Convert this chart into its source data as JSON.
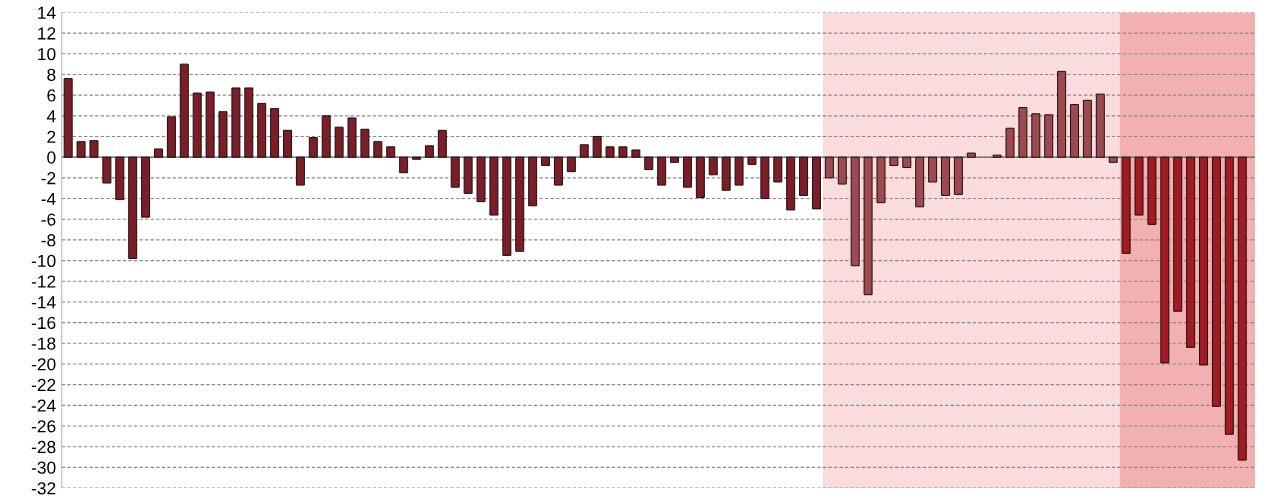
{
  "chart_data": {
    "type": "bar",
    "categories": [
      null,
      null,
      null,
      null,
      null,
      null,
      null,
      null,
      null,
      null,
      null,
      null,
      null,
      null,
      null,
      null,
      null,
      null,
      null,
      null,
      null,
      null,
      null,
      null,
      null,
      null,
      null,
      null,
      null,
      null,
      null,
      null,
      null,
      null,
      null,
      null,
      null,
      null,
      null,
      null,
      null,
      null,
      null,
      null,
      null,
      null,
      null,
      null,
      null,
      null,
      null,
      null,
      null,
      null,
      null,
      null,
      null,
      null,
      null,
      null,
      null,
      null,
      null,
      null,
      null,
      null,
      null,
      null,
      null,
      null,
      null,
      null,
      null,
      null,
      null,
      null,
      null,
      null,
      null,
      null,
      null,
      null,
      null,
      null,
      null,
      null,
      null,
      null,
      null,
      null,
      null,
      null
    ],
    "values": [
      7.6,
      1.5,
      1.6,
      -2.5,
      -4.1,
      -9.8,
      -5.8,
      0.8,
      3.9,
      9.0,
      6.2,
      6.3,
      4.4,
      6.7,
      6.7,
      5.2,
      4.7,
      2.6,
      -2.7,
      1.9,
      4.0,
      2.9,
      3.8,
      2.7,
      1.5,
      1.0,
      -1.5,
      -0.2,
      1.1,
      2.6,
      -2.9,
      -3.5,
      -4.3,
      -5.6,
      -9.5,
      -9.1,
      -4.7,
      -0.8,
      -2.7,
      -1.4,
      1.2,
      2.0,
      1.0,
      1.0,
      0.7,
      -1.2,
      -2.7,
      -0.5,
      -2.9,
      -3.9,
      -1.7,
      -3.2,
      -2.7,
      -0.7,
      -4.0,
      -2.4,
      -5.1,
      -3.7,
      -5.0,
      -2.0,
      -2.6,
      -10.5,
      -13.3,
      -4.4,
      -0.8,
      -1.0,
      -4.8,
      -2.4,
      -3.7,
      -3.6,
      0.4,
      null,
      0.2,
      2.8,
      4.8,
      4.2,
      4.1,
      8.3,
      5.1,
      5.5,
      6.1,
      -0.5,
      -9.3,
      -5.6,
      -6.5,
      -19.9,
      -14.9,
      -18.4,
      -20.1,
      -24.1,
      -26.8,
      -29.3
    ],
    "colors": [
      "#7a1f2a",
      "#7a1f2a",
      "#7a1f2a",
      "#7a1f2a",
      "#7a1f2a",
      "#7a1f2a",
      "#7a1f2a",
      "#7a1f2a",
      "#7a1f2a",
      "#7a1f2a",
      "#7a1f2a",
      "#7a1f2a",
      "#7a1f2a",
      "#7a1f2a",
      "#7a1f2a",
      "#7a1f2a",
      "#7a1f2a",
      "#7a1f2a",
      "#7a1f2a",
      "#7a1f2a",
      "#7a1f2a",
      "#7a1f2a",
      "#7a1f2a",
      "#7a1f2a",
      "#7a1f2a",
      "#7a1f2a",
      "#7a1f2a",
      "#7a1f2a",
      "#7a1f2a",
      "#7a1f2a",
      "#7a1f2a",
      "#7a1f2a",
      "#7a1f2a",
      "#7a1f2a",
      "#7a1f2a",
      "#7a1f2a",
      "#7a1f2a",
      "#7a1f2a",
      "#7a1f2a",
      "#7a1f2a",
      "#7a1f2a",
      "#7a1f2a",
      "#7a1f2a",
      "#7a1f2a",
      "#7a1f2a",
      "#7a1f2a",
      "#7a1f2a",
      "#7a1f2a",
      "#7a1f2a",
      "#7a1f2a",
      "#7a1f2a",
      "#7a1f2a",
      "#7a1f2a",
      "#7a1f2a",
      "#7a1f2a",
      "#7a1f2a",
      "#7a1f2a",
      "#7a1f2a",
      "#7a1f2a",
      "#9c4a50",
      "#9c4a50",
      "#9c4a50",
      "#9c4a50",
      "#9c4a50",
      "#9c4a50",
      "#9c4a50",
      "#9c4a50",
      "#9c4a50",
      "#9c4a50",
      "#9c4a50",
      "#9c4a50",
      "#9c4a50",
      "#9c4a50",
      "#9c4a50",
      "#9c4a50",
      "#9c4a50",
      "#9c4a50",
      "#9c4a50",
      "#9c4a50",
      "#9c4a50",
      "#9c4a50",
      "#9c4a50",
      "#a01c22",
      "#a01c22",
      "#a01c22",
      "#a01c22",
      "#a01c22",
      "#a01c22",
      "#a01c22",
      "#a01c22",
      "#a01c22",
      "#a01c22"
    ],
    "ylim": [
      -32,
      14
    ],
    "yticks": [
      -32,
      -30,
      -28,
      -26,
      -24,
      -22,
      -20,
      -18,
      -16,
      -14,
      -12,
      -10,
      -8,
      -6,
      -4,
      -2,
      0,
      2,
      4,
      6,
      8,
      10,
      12,
      14
    ],
    "tick_labels": "y",
    "grid": "y"
  }
}
